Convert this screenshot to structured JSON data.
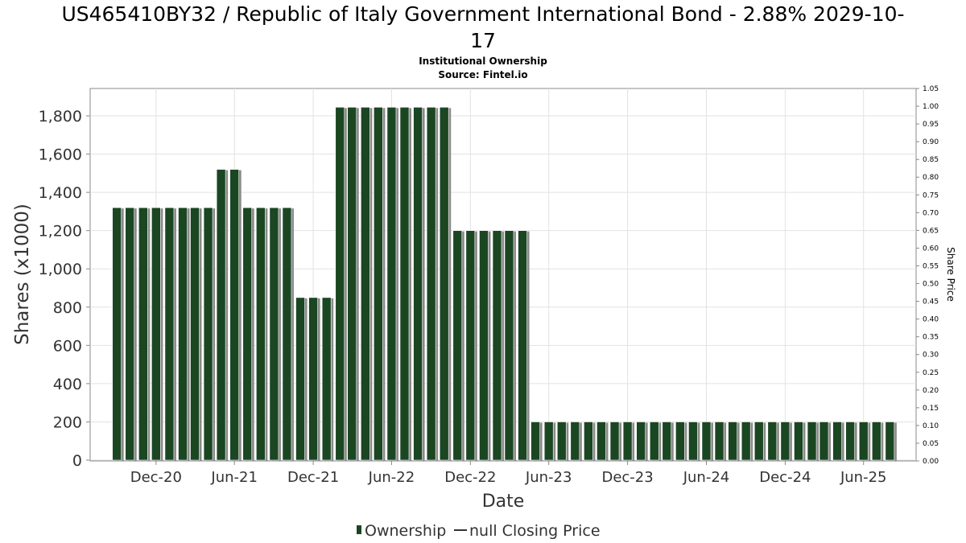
{
  "chart_data": {
    "type": "bar",
    "title": "US465410BY32 / Republic of Italy Government International Bond - 2.88% 2029-10-17",
    "title_line1": "US465410BY32 / Republic of Italy Government International Bond - 2.88% 2029-10-",
    "title_line2": "17",
    "subtitle": "Institutional Ownership",
    "source": "Source: Fintel.io",
    "xlabel": "Date",
    "ylabel": "Shares (x1000)",
    "y2label": "Share Price",
    "ylim": [
      0,
      1950
    ],
    "y2lim": [
      0,
      1.05
    ],
    "x_range": [
      "2020-07-01",
      "2025-10-01"
    ],
    "yticks": [
      0,
      200,
      400,
      600,
      800,
      1000,
      1200,
      1400,
      1600,
      1800
    ],
    "ytick_labels": [
      "0",
      "200",
      "400",
      "600",
      "800",
      "1,000",
      "1,200",
      "1,400",
      "1,600",
      "1,800"
    ],
    "y2ticks": [
      "0.00",
      "0.05",
      "0.10",
      "0.15",
      "0.20",
      "0.25",
      "0.30",
      "0.35",
      "0.40",
      "0.45",
      "0.50",
      "0.55",
      "0.60",
      "0.65",
      "0.70",
      "0.75",
      "0.80",
      "0.85",
      "0.90",
      "0.95",
      "1.00",
      "1.05"
    ],
    "xticks": [
      {
        "label": "Dec-20",
        "date": "2020-12-01"
      },
      {
        "label": "Jun-21",
        "date": "2021-06-01"
      },
      {
        "label": "Dec-21",
        "date": "2021-12-01"
      },
      {
        "label": "Jun-22",
        "date": "2022-06-01"
      },
      {
        "label": "Dec-22",
        "date": "2022-12-01"
      },
      {
        "label": "Jun-23",
        "date": "2023-06-01"
      },
      {
        "label": "Dec-23",
        "date": "2023-12-01"
      },
      {
        "label": "Jun-24",
        "date": "2024-06-01"
      },
      {
        "label": "Dec-24",
        "date": "2024-12-01"
      },
      {
        "label": "Jun-25",
        "date": "2025-06-01"
      }
    ],
    "series": [
      {
        "name": "Ownership",
        "color": "#1b4622",
        "x": [
          "2020-09",
          "2020-10",
          "2020-11",
          "2020-12",
          "2021-01",
          "2021-02",
          "2021-03",
          "2021-04",
          "2021-05",
          "2021-06",
          "2021-07",
          "2021-08",
          "2021-09",
          "2021-10",
          "2021-11",
          "2021-12",
          "2022-01",
          "2022-02",
          "2022-03",
          "2022-04",
          "2022-05",
          "2022-06",
          "2022-07",
          "2022-08",
          "2022-09",
          "2022-10",
          "2022-11",
          "2022-12",
          "2023-01",
          "2023-02",
          "2023-03",
          "2023-04",
          "2023-05",
          "2023-06",
          "2023-07",
          "2023-08",
          "2023-09",
          "2023-10",
          "2023-11",
          "2023-12",
          "2024-01",
          "2024-02",
          "2024-03",
          "2024-04",
          "2024-05",
          "2024-06",
          "2024-07",
          "2024-08",
          "2024-09",
          "2024-10",
          "2024-11",
          "2024-12",
          "2025-01",
          "2025-02",
          "2025-03",
          "2025-04",
          "2025-05",
          "2025-06",
          "2025-07",
          "2025-08"
        ],
        "values": [
          1320,
          1320,
          1320,
          1320,
          1320,
          1320,
          1320,
          1320,
          1520,
          1520,
          1320,
          1320,
          1320,
          1320,
          850,
          850,
          850,
          1845,
          1845,
          1845,
          1845,
          1845,
          1845,
          1845,
          1845,
          1845,
          1200,
          1200,
          1200,
          1200,
          1200,
          1200,
          200,
          200,
          200,
          200,
          200,
          200,
          200,
          200,
          200,
          200,
          200,
          200,
          200,
          200,
          200,
          200,
          200,
          200,
          200,
          200,
          200,
          200,
          200,
          200,
          200,
          200,
          200,
          200
        ]
      }
    ],
    "legend": [
      {
        "label": "Ownership",
        "color": "#1b4622",
        "marker": "bar"
      },
      {
        "label": "null Closing Price",
        "color": "#333333",
        "marker": "line"
      }
    ],
    "legend_position": "bottom",
    "grid": true
  }
}
